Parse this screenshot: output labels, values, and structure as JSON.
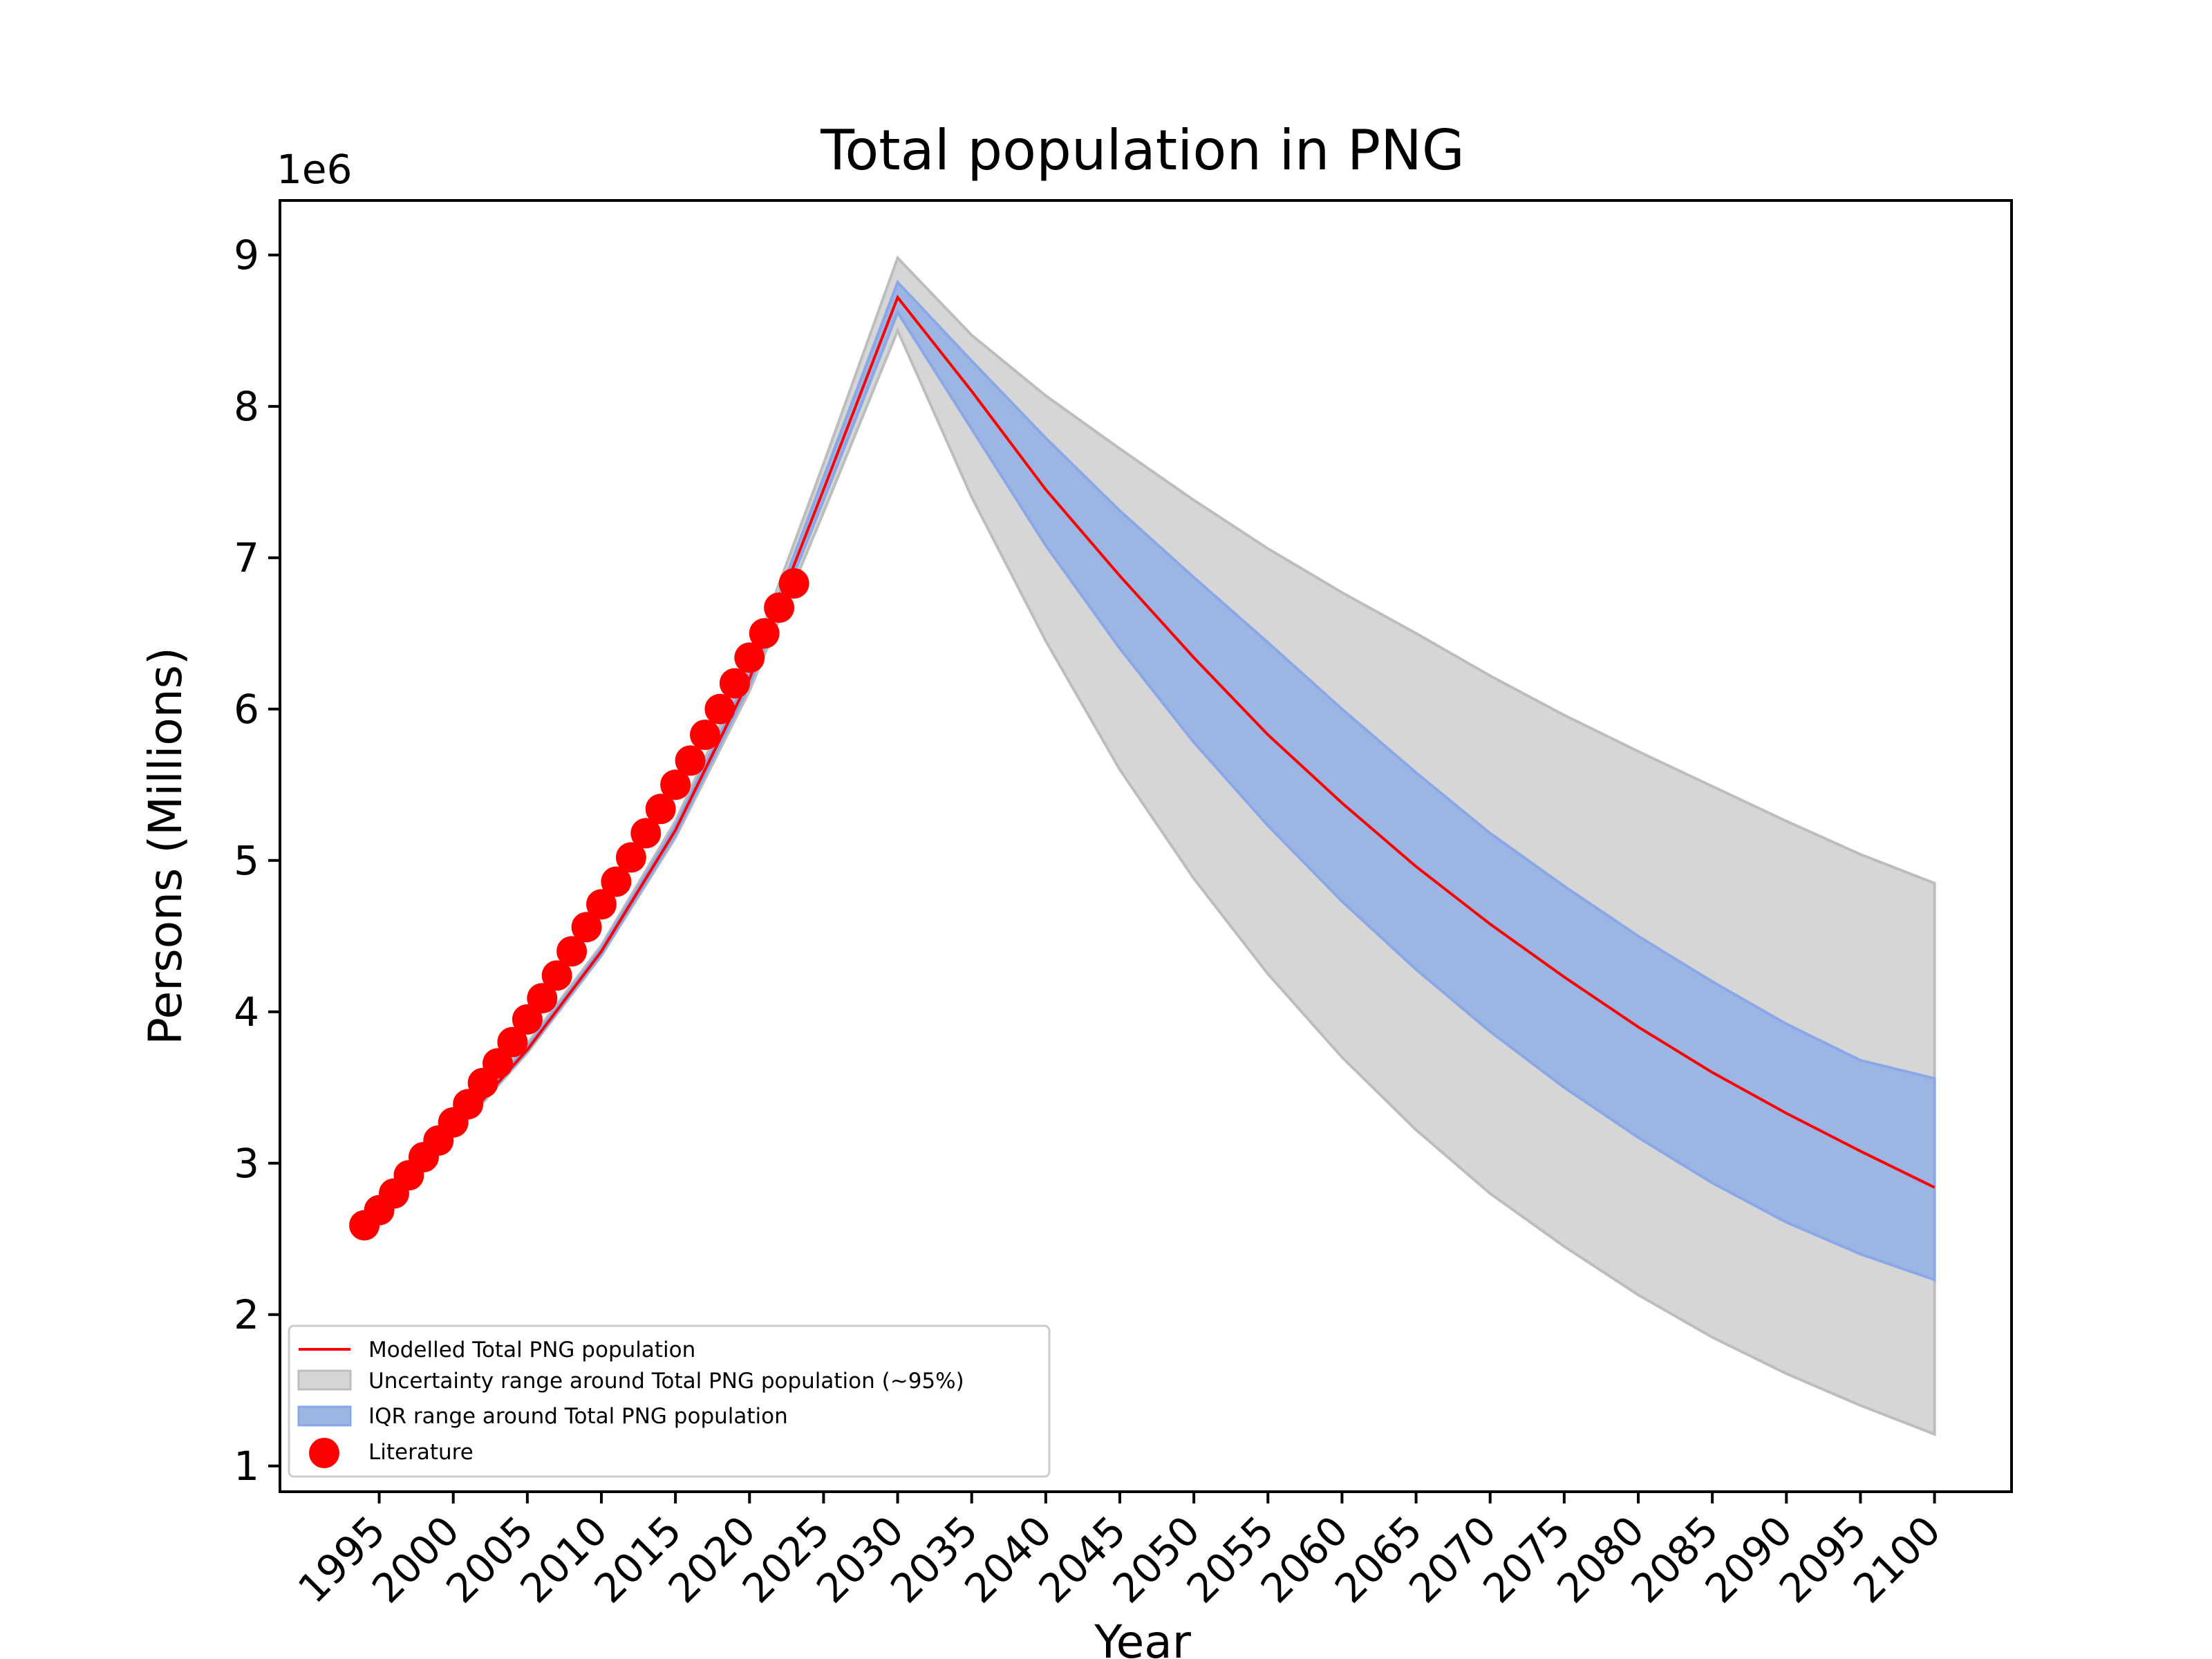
{
  "chart_data": {
    "type": "line",
    "title": "Total population in PNG",
    "xlabel": "Year",
    "ylabel": "Persons (Millions)",
    "y_offset_text": "1e6",
    "xlim": [
      1988.3,
      2105.2
    ],
    "ylim": [
      0.83,
      9.36
    ],
    "x_ticks": [
      1995,
      2000,
      2005,
      2010,
      2015,
      2020,
      2025,
      2030,
      2035,
      2040,
      2045,
      2050,
      2055,
      2060,
      2065,
      2070,
      2075,
      2080,
      2085,
      2090,
      2095,
      2100
    ],
    "x_tick_labels": [
      "1995",
      "2000",
      "2005",
      "2010",
      "2015",
      "2020",
      "2025",
      "2030",
      "2035",
      "2040",
      "2045",
      "2050",
      "2055",
      "2060",
      "2065",
      "2070",
      "2075",
      "2080",
      "2085",
      "2090",
      "2095",
      "2100"
    ],
    "y_ticks": [
      1,
      2,
      3,
      4,
      5,
      6,
      7,
      8,
      9
    ],
    "y_tick_labels": [
      "1",
      "2",
      "3",
      "4",
      "5",
      "6",
      "7",
      "8",
      "9"
    ],
    "grid": false,
    "legend_position": "lower-left",
    "x": [
      1994,
      2000,
      2005,
      2010,
      2015,
      2020,
      2025,
      2030,
      2035,
      2040,
      2045,
      2050,
      2055,
      2060,
      2065,
      2070,
      2075,
      2080,
      2085,
      2090,
      2095,
      2100
    ],
    "series": [
      {
        "name": "Modelled Total PNG population",
        "kind": "line",
        "color": "#ff0000",
        "values": [
          2.6,
          3.2,
          3.75,
          4.4,
          5.2,
          6.2,
          7.45,
          8.72,
          8.1,
          7.45,
          6.88,
          6.34,
          5.83,
          5.38,
          4.96,
          4.58,
          4.23,
          3.9,
          3.6,
          3.33,
          3.08,
          2.84
        ]
      },
      {
        "name": "Uncertainty range around Total PNG population (~95%)",
        "kind": "band",
        "color": "#d6d6d6",
        "edge_color": "#bdbdbd",
        "lower": [
          2.58,
          3.18,
          3.73,
          4.37,
          5.15,
          6.12,
          7.3,
          8.5,
          7.4,
          6.45,
          5.6,
          4.88,
          4.25,
          3.7,
          3.22,
          2.8,
          2.45,
          2.13,
          1.85,
          1.61,
          1.4,
          1.21
        ],
        "upper": [
          2.62,
          3.23,
          3.79,
          4.44,
          5.26,
          6.3,
          7.62,
          8.98,
          8.47,
          8.07,
          7.72,
          7.38,
          7.06,
          6.77,
          6.5,
          6.22,
          5.96,
          5.72,
          5.49,
          5.26,
          5.04,
          4.85
        ]
      },
      {
        "name": "IQR range around Total PNG population",
        "kind": "band",
        "color": "#9db5e2",
        "edge_color": "#8aa8e8",
        "lower": [
          2.59,
          3.19,
          3.74,
          4.38,
          5.17,
          6.16,
          7.38,
          8.62,
          7.85,
          7.08,
          6.4,
          5.78,
          5.23,
          4.73,
          4.28,
          3.87,
          3.5,
          3.17,
          2.87,
          2.61,
          2.4,
          2.23
        ],
        "upper": [
          2.61,
          3.22,
          3.77,
          4.42,
          5.23,
          6.24,
          7.53,
          8.82,
          8.3,
          7.79,
          7.31,
          6.87,
          6.44,
          6.0,
          5.58,
          5.18,
          4.83,
          4.5,
          4.2,
          3.92,
          3.68,
          3.56
        ]
      },
      {
        "name": "Literature",
        "kind": "scatter",
        "color": "#ff0000",
        "x": [
          1994,
          1995,
          1996,
          1997,
          1998,
          1999,
          2000,
          2001,
          2002,
          2003,
          2004,
          2005,
          2006,
          2007,
          2008,
          2009,
          2010,
          2011,
          2012,
          2013,
          2014,
          2015,
          2016,
          2017,
          2018,
          2019,
          2020,
          2021,
          2022,
          2023
        ],
        "values": [
          2.59,
          2.69,
          2.8,
          2.92,
          3.04,
          3.15,
          3.27,
          3.39,
          3.53,
          3.66,
          3.8,
          3.95,
          4.09,
          4.24,
          4.4,
          4.56,
          4.71,
          4.86,
          5.02,
          5.18,
          5.34,
          5.5,
          5.66,
          5.83,
          6.0,
          6.17,
          6.34,
          6.5,
          6.67,
          6.83
        ]
      }
    ]
  }
}
